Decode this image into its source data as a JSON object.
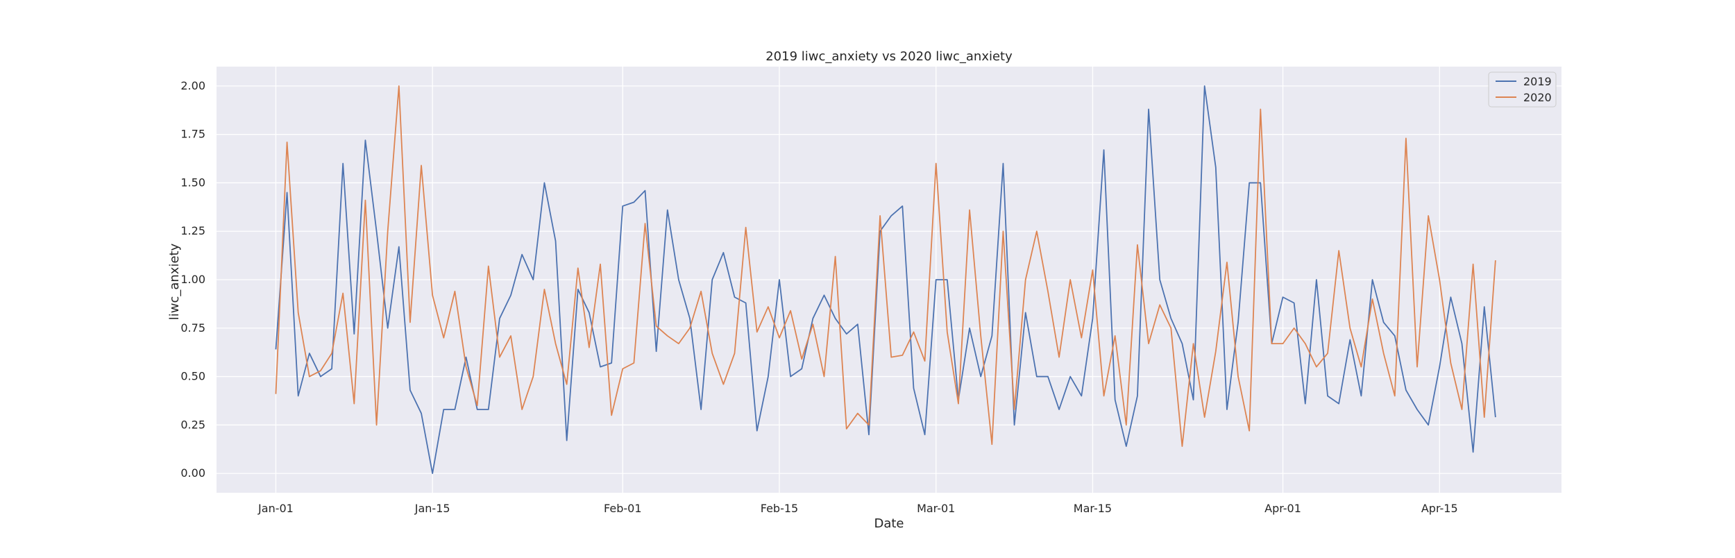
{
  "chart_data": {
    "type": "line",
    "title": "2019 liwc_anxiety vs 2020 liwc_anxiety",
    "xlabel": "Date",
    "ylabel": "liwc_anxiety",
    "x_tick_labels": [
      "Jan-01",
      "Jan-15",
      "Feb-01",
      "Feb-15",
      "Mar-01",
      "Mar-15",
      "Apr-01",
      "Apr-15"
    ],
    "x_tick_days": [
      0,
      14,
      31,
      45,
      59,
      73,
      90,
      104
    ],
    "x_start": "Jan-01",
    "xlim_days": [
      -5.3,
      114.9
    ],
    "y_ticks": [
      0.0,
      0.25,
      0.5,
      0.75,
      1.0,
      1.25,
      1.5,
      1.75,
      2.0
    ],
    "y_tick_labels": [
      "0.00",
      "0.25",
      "0.50",
      "0.75",
      "1.00",
      "1.25",
      "1.50",
      "1.75",
      "2.00"
    ],
    "ylim": [
      -0.1,
      2.1
    ],
    "grid": true,
    "legend_position": "top-right",
    "colors": {
      "background": "#eaeaf2",
      "grid": "#ffffff"
    },
    "series": [
      {
        "name": "2019",
        "color": "#4c72b0",
        "values": [
          0.64,
          1.45,
          0.4,
          0.62,
          0.5,
          0.54,
          1.6,
          0.72,
          1.72,
          1.25,
          0.75,
          1.17,
          0.43,
          0.31,
          0.0,
          0.33,
          0.33,
          0.6,
          0.33,
          0.33,
          0.8,
          0.92,
          1.13,
          1.0,
          1.5,
          1.2,
          0.17,
          0.95,
          0.83,
          0.55,
          0.57,
          1.38,
          1.4,
          1.46,
          0.63,
          1.36,
          1.0,
          0.8,
          0.33,
          1.0,
          1.14,
          0.91,
          0.88,
          0.22,
          0.5,
          1.0,
          0.5,
          0.54,
          0.8,
          0.92,
          0.8,
          0.72,
          0.77,
          0.2,
          1.25,
          1.33,
          1.38,
          0.44,
          0.2,
          1.0,
          1.0,
          0.38,
          0.75,
          0.5,
          0.71,
          1.6,
          0.25,
          0.83,
          0.5,
          0.5,
          0.33,
          0.5,
          0.4,
          0.8,
          1.67,
          0.38,
          0.14,
          0.4,
          1.88,
          1.0,
          0.8,
          0.67,
          0.38,
          2.0,
          1.58,
          0.33,
          0.78,
          1.5,
          1.5,
          0.67,
          0.91,
          0.88,
          0.36,
          1.0,
          0.4,
          0.36,
          0.69,
          0.4,
          1.0,
          0.78,
          0.71,
          0.43,
          0.33,
          0.25,
          0.55,
          0.91,
          0.67,
          0.11,
          0.86,
          0.29
        ]
      },
      {
        "name": "2020",
        "color": "#dd8452",
        "values": [
          0.41,
          1.71,
          0.83,
          0.5,
          0.53,
          0.62,
          0.93,
          0.36,
          1.41,
          0.25,
          1.25,
          2.0,
          0.78,
          1.59,
          0.92,
          0.7,
          0.94,
          0.55,
          0.35,
          1.07,
          0.6,
          0.71,
          0.33,
          0.5,
          0.95,
          0.67,
          0.46,
          1.06,
          0.65,
          1.08,
          0.3,
          0.54,
          0.57,
          1.29,
          0.76,
          0.71,
          0.67,
          0.75,
          0.94,
          0.62,
          0.46,
          0.62,
          1.27,
          0.73,
          0.86,
          0.7,
          0.84,
          0.59,
          0.77,
          0.5,
          1.12,
          0.23,
          0.31,
          0.25,
          1.33,
          0.6,
          0.61,
          0.73,
          0.58,
          1.6,
          0.73,
          0.36,
          1.36,
          0.71,
          0.15,
          1.25,
          0.33,
          1.0,
          1.25,
          0.94,
          0.6,
          1.0,
          0.7,
          1.05,
          0.4,
          0.71,
          0.25,
          1.18,
          0.67,
          0.87,
          0.75,
          0.14,
          0.67,
          0.29,
          0.63,
          1.09,
          0.5,
          0.22,
          1.88,
          0.67,
          0.67,
          0.75,
          0.67,
          0.55,
          0.62,
          1.15,
          0.75,
          0.55,
          0.9,
          0.62,
          0.4,
          1.73,
          0.55,
          1.33,
          1.0,
          0.57,
          0.33,
          1.08,
          0.29,
          1.1
        ]
      }
    ]
  }
}
